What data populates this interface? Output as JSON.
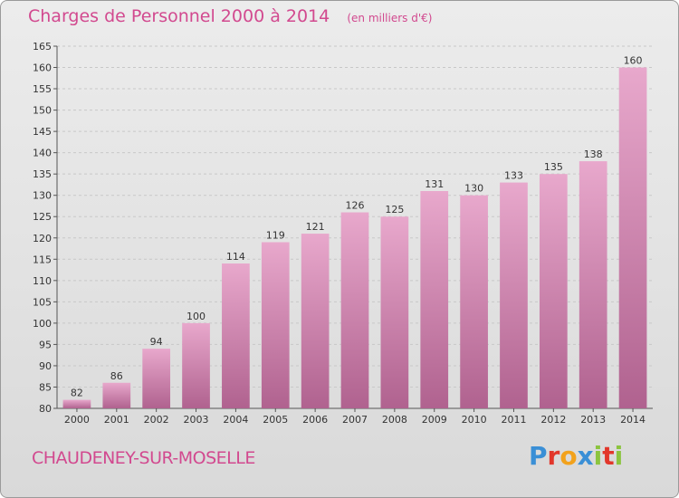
{
  "header": {
    "title": "Charges de Personnel 2000 à 2014",
    "subtitle": "(en milliers d'€)"
  },
  "footer": {
    "commune": "CHAUDENEY-SUR-MOSELLE",
    "logo_text": "Proxiti",
    "logo_letters": [
      {
        "ch": "P",
        "color": "#3a8fd6"
      },
      {
        "ch": "r",
        "color": "#e2372b"
      },
      {
        "ch": "o",
        "color": "#f2a21c"
      },
      {
        "ch": "x",
        "color": "#3a8fd6"
      },
      {
        "ch": "i",
        "color": "#8cc43f"
      },
      {
        "ch": "t",
        "color": "#e2372b"
      },
      {
        "ch": "i",
        "color": "#8cc43f"
      }
    ]
  },
  "colors": {
    "accent": "#d2498f",
    "bar_light": "#e8a8cc",
    "bar_dark": "#b0628f",
    "grid": "#c8c8c8",
    "axis": "#555555"
  },
  "chart_data": {
    "type": "bar",
    "title": "Charges de Personnel 2000 à 2014",
    "subtitle": "(en milliers d'€)",
    "categories": [
      "2000",
      "2001",
      "2002",
      "2003",
      "2004",
      "2005",
      "2006",
      "2007",
      "2008",
      "2009",
      "2010",
      "2011",
      "2012",
      "2013",
      "2014"
    ],
    "values": [
      82,
      86,
      94,
      100,
      114,
      119,
      121,
      126,
      125,
      131,
      130,
      133,
      135,
      138,
      160
    ],
    "ylim": [
      80,
      165
    ],
    "yticks": [
      80,
      85,
      90,
      95,
      100,
      105,
      110,
      115,
      120,
      125,
      130,
      135,
      140,
      145,
      150,
      155,
      160,
      165
    ],
    "grid": true,
    "data_labels": true
  }
}
